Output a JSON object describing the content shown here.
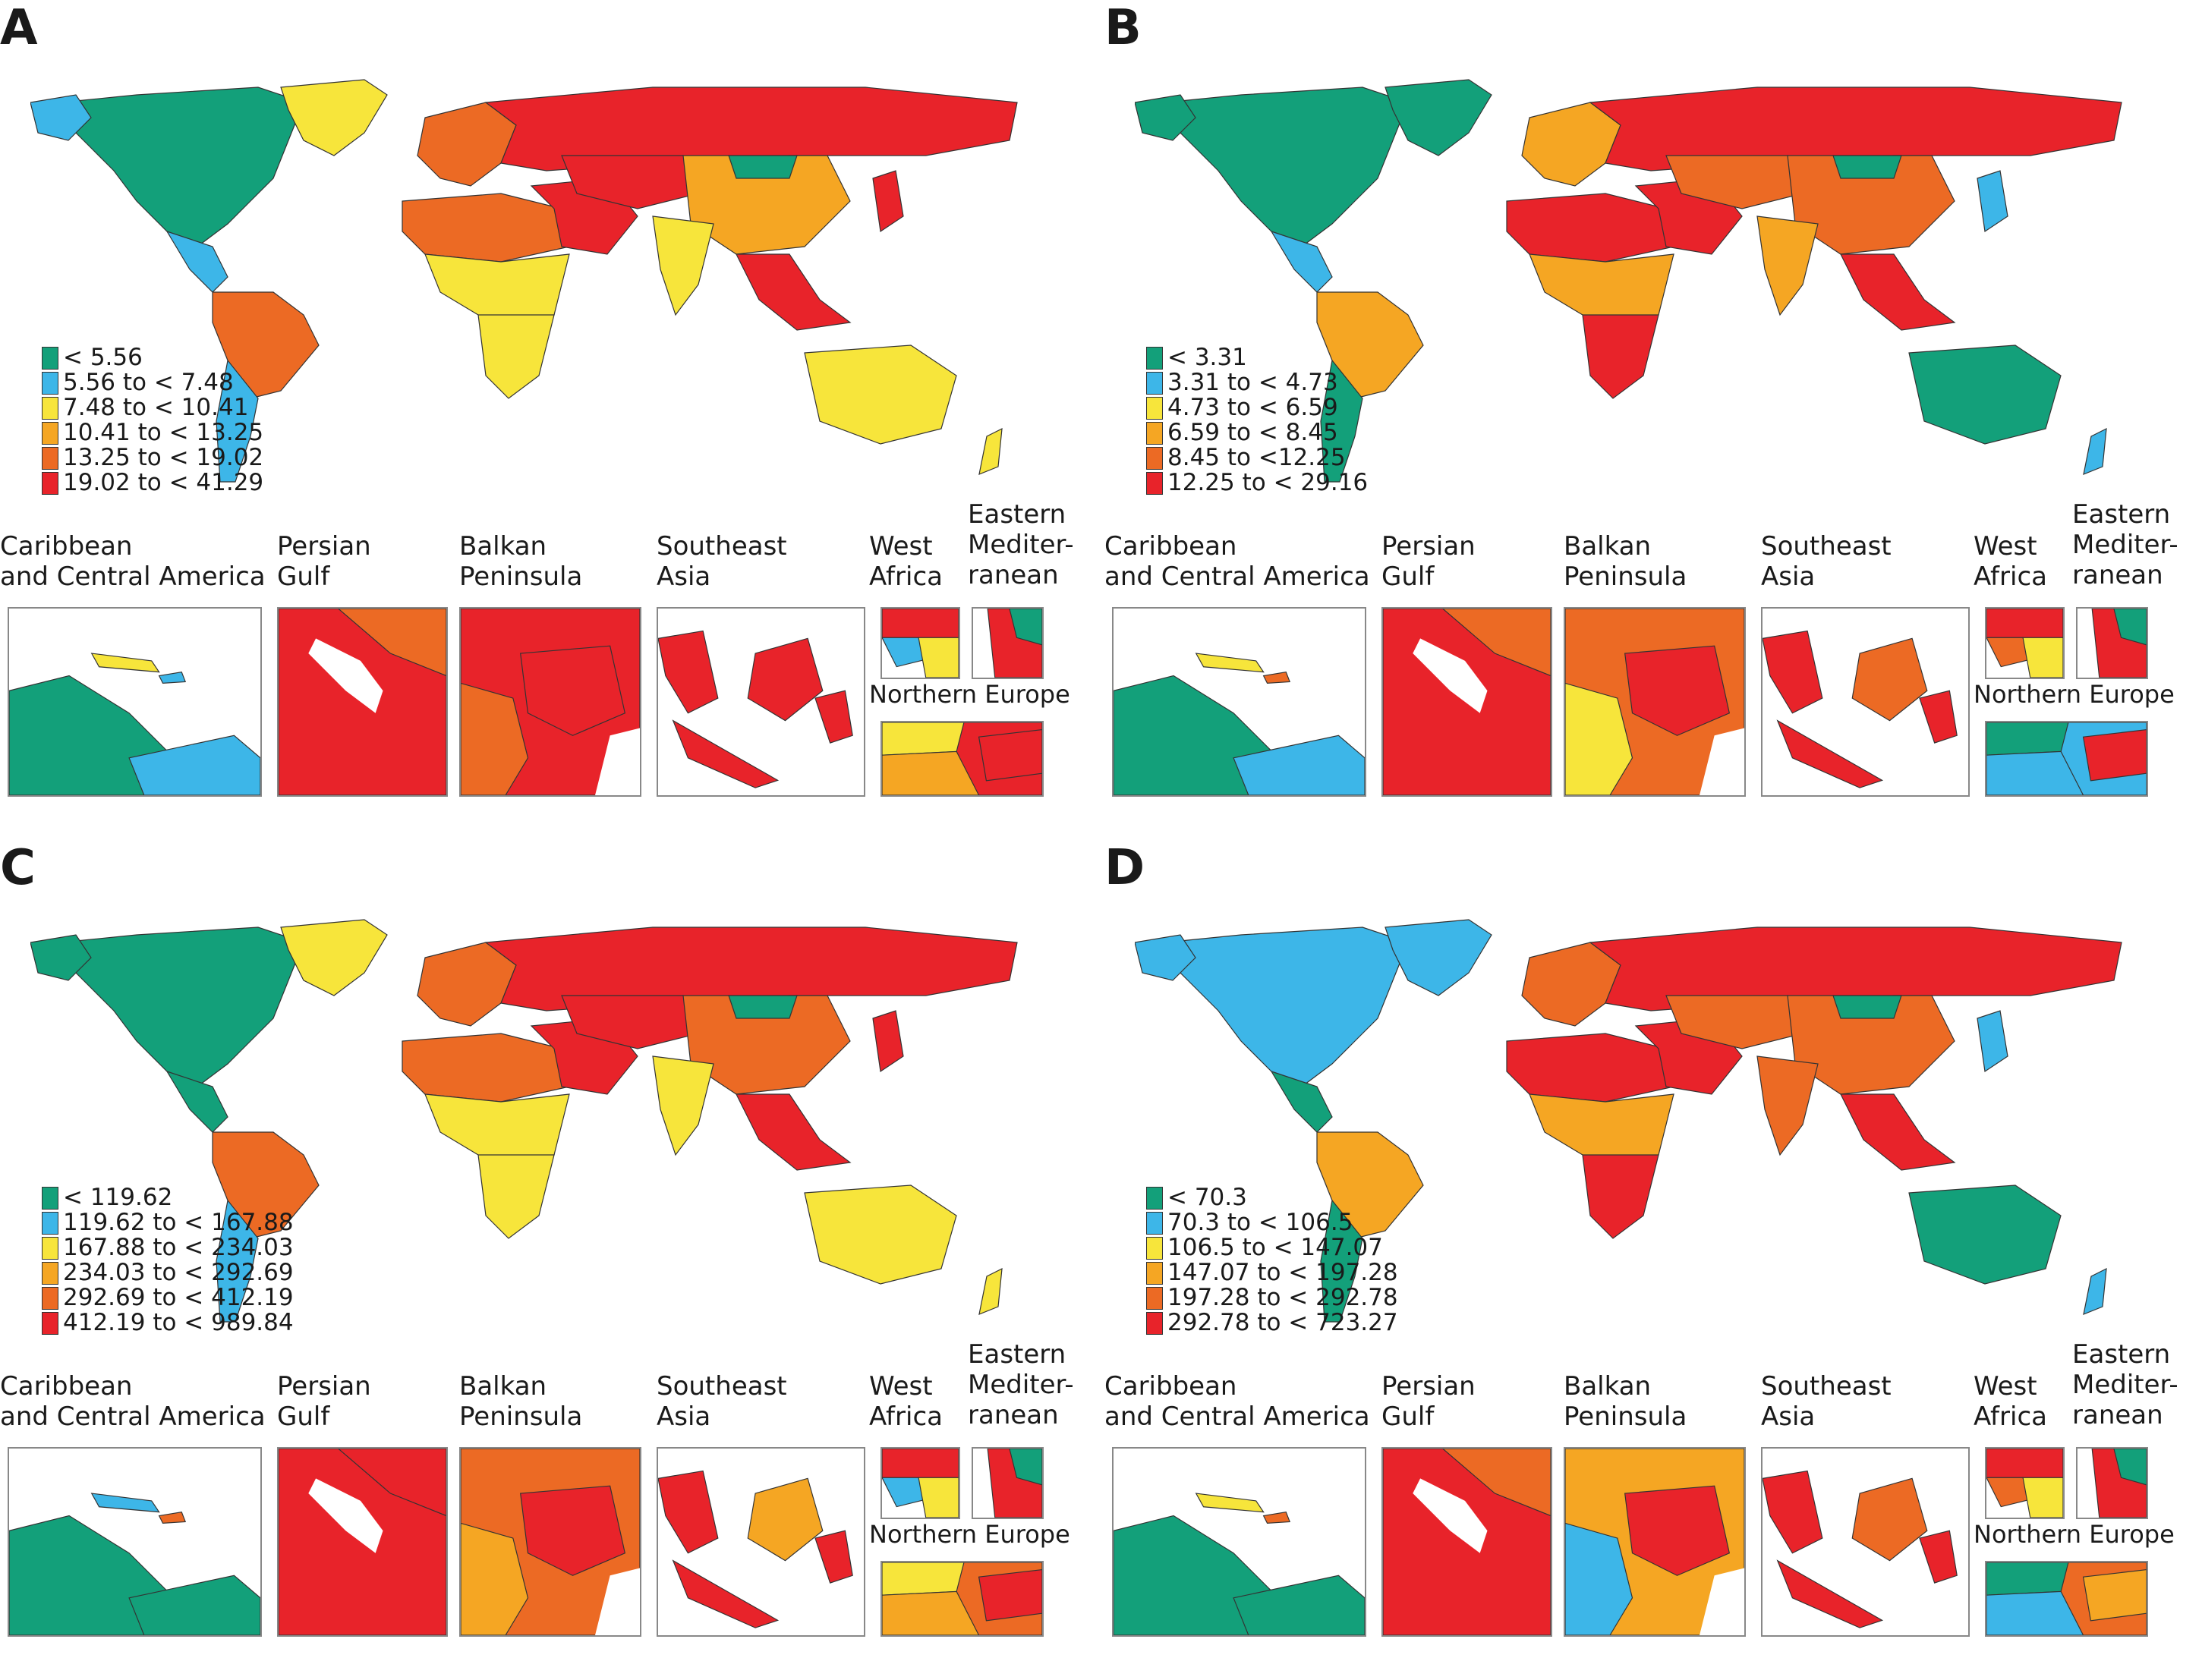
{
  "figure": {
    "panels": [
      {
        "letter": "A",
        "legend": [
          {
            "label": "< 5.56",
            "color": "#13a07a"
          },
          {
            "label": "5.56 to < 7.48",
            "color": "#3db6e8"
          },
          {
            "label": "7.48 to < 10.41",
            "color": "#f7e53b"
          },
          {
            "label": "10.41 to < 13.25",
            "color": "#f5a623"
          },
          {
            "label": "13.25 to < 19.02",
            "color": "#ec6a24"
          },
          {
            "label": "19.02 to < 41.29",
            "color": "#e8232a"
          }
        ]
      },
      {
        "letter": "B",
        "legend": [
          {
            "label": "< 3.31",
            "color": "#13a07a"
          },
          {
            "label": "3.31 to < 4.73",
            "color": "#3db6e8"
          },
          {
            "label": "4.73 to < 6.59",
            "color": "#f7e53b"
          },
          {
            "label": "6.59 to < 8.45",
            "color": "#f5a623"
          },
          {
            "label": "8.45 to <12.25",
            "color": "#ec6a24"
          },
          {
            "label": "12.25 to < 29.16",
            "color": "#e8232a"
          }
        ]
      },
      {
        "letter": "C",
        "legend": [
          {
            "label": "< 119.62",
            "color": "#13a07a"
          },
          {
            "label": "119.62 to < 167.88",
            "color": "#3db6e8"
          },
          {
            "label": "167.88 to < 234.03",
            "color": "#f7e53b"
          },
          {
            "label": "234.03 to < 292.69",
            "color": "#f5a623"
          },
          {
            "label": "292.69 to < 412.19",
            "color": "#ec6a24"
          },
          {
            "label": "412.19 to < 989.84",
            "color": "#e8232a"
          }
        ]
      },
      {
        "letter": "D",
        "legend": [
          {
            "label": "< 70.3",
            "color": "#13a07a"
          },
          {
            "label": "70.3 to < 106.5",
            "color": "#3db6e8"
          },
          {
            "label": "106.5 to < 147.07",
            "color": "#f7e53b"
          },
          {
            "label": "147.07 to < 197.28",
            "color": "#f5a623"
          },
          {
            "label": "197.28 to < 292.78",
            "color": "#ec6a24"
          },
          {
            "label": "292.78 to < 723.27",
            "color": "#e8232a"
          }
        ]
      }
    ],
    "inset_labels": {
      "caribbean": "Caribbean\nand Central America",
      "persian_gulf": "Persian\nGulf",
      "balkan": "Balkan\nPeninsula",
      "southeast_asia": "Southeast\nAsia",
      "west_africa": "West\nAfrica",
      "eastern_med": "Eastern\nMediter-\nranean",
      "northern_europe": "Northern Europe"
    }
  }
}
